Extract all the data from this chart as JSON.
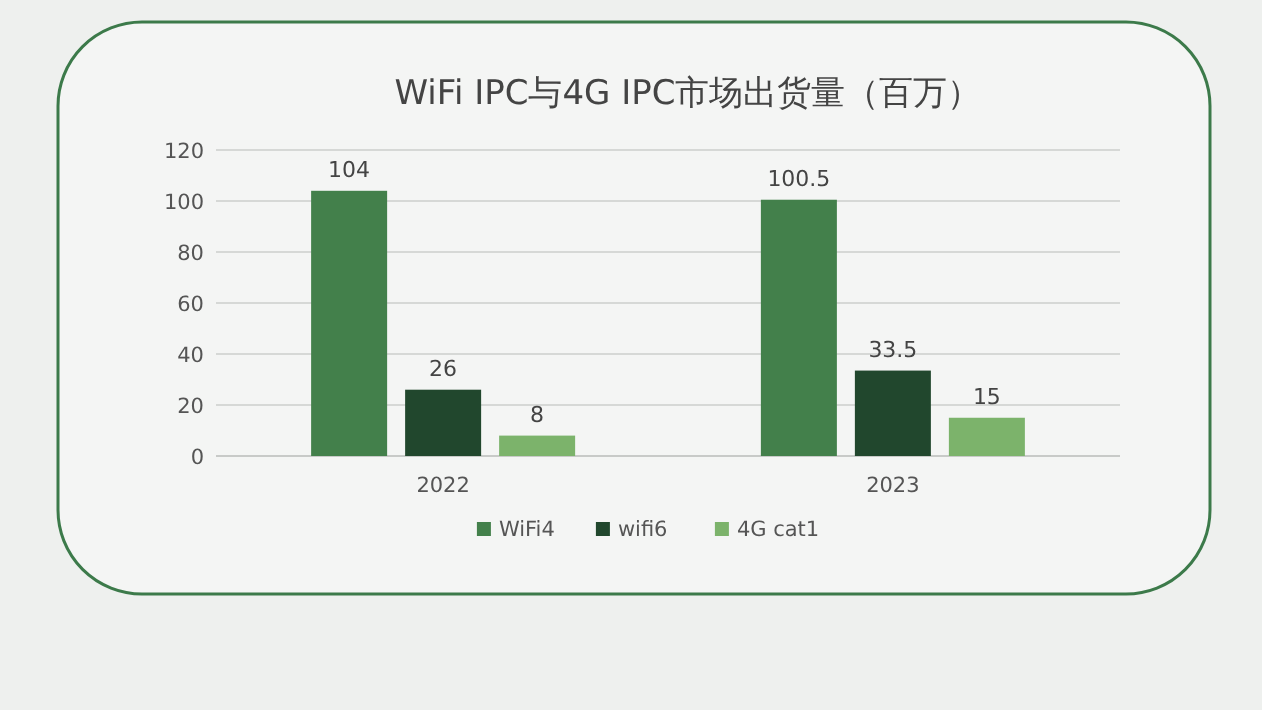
{
  "chart_data": {
    "type": "bar",
    "title": "WiFi IPC与4G IPC市场出货量（百万）",
    "categories": [
      "2022",
      "2023"
    ],
    "series": [
      {
        "name": "WiFi4",
        "color": "#43804b",
        "values": [
          104,
          100.5
        ]
      },
      {
        "name": "wifi6",
        "color": "#21472d",
        "values": [
          26,
          33.5
        ]
      },
      {
        "name": "4G cat1",
        "color": "#7cb36b",
        "values": [
          8,
          15
        ]
      }
    ],
    "ylim": [
      0,
      120
    ],
    "yticks": [
      0,
      20,
      40,
      60,
      80,
      100,
      120
    ],
    "grid": "y",
    "legend": "bottom",
    "data_labels": true
  }
}
